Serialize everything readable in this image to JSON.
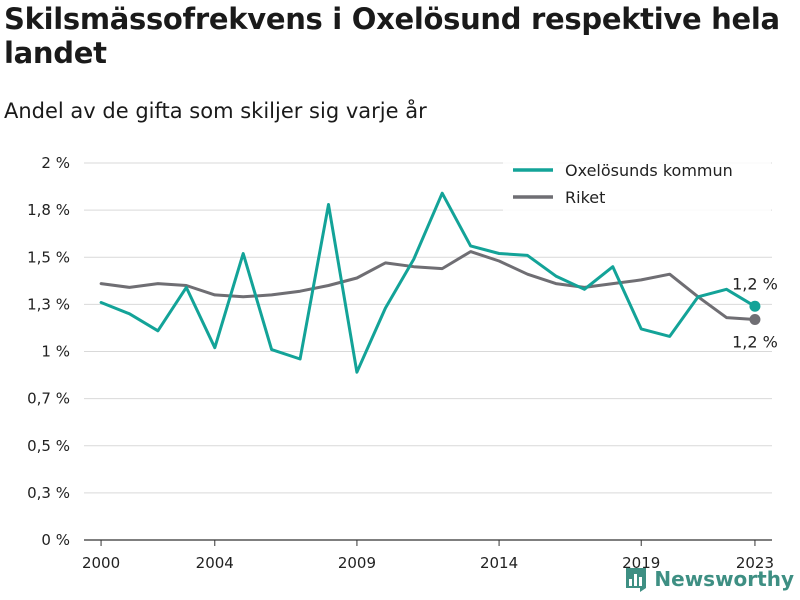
{
  "chart_data": {
    "type": "line",
    "title": "Skilsmässofrekvens i Oxelösund respektive hela landet",
    "subtitle": "Andel av de gifta som skiljer sig varje år",
    "x": [
      2000,
      2001,
      2002,
      2003,
      2004,
      2005,
      2006,
      2007,
      2008,
      2009,
      2010,
      2011,
      2012,
      2013,
      2014,
      2015,
      2016,
      2017,
      2018,
      2019,
      2020,
      2021,
      2022,
      2023
    ],
    "x_ticks": [
      "2000",
      "2004",
      "2009",
      "2014",
      "2019",
      "2023"
    ],
    "x_tick_values": [
      2000,
      2004,
      2009,
      2014,
      2019,
      2023
    ],
    "y_ticks": [
      "0 %",
      "0,3 %",
      "0,5 %",
      "0,7 %",
      "1 %",
      "1,3 %",
      "1,5 %",
      "1,8 %",
      "2 %"
    ],
    "y_tick_values": [
      0,
      0.25,
      0.5,
      0.75,
      1.0,
      1.25,
      1.5,
      1.75,
      2.0
    ],
    "ylim": [
      0,
      2.0
    ],
    "xlim": [
      1999.4,
      2023.6
    ],
    "grid": true,
    "legend_position": "top-right",
    "series": [
      {
        "name": "Oxelösunds kommun",
        "color": "#13a398",
        "values": [
          1.26,
          1.2,
          1.11,
          1.34,
          1.02,
          1.52,
          1.01,
          0.96,
          1.78,
          0.89,
          1.23,
          1.49,
          1.84,
          1.56,
          1.52,
          1.51,
          1.4,
          1.33,
          1.45,
          1.12,
          1.08,
          1.29,
          1.33,
          1.24
        ],
        "end_label": "1,2 %"
      },
      {
        "name": "Riket",
        "color": "#6f6e73",
        "values": [
          1.36,
          1.34,
          1.36,
          1.35,
          1.3,
          1.29,
          1.3,
          1.32,
          1.35,
          1.39,
          1.47,
          1.45,
          1.44,
          1.53,
          1.48,
          1.41,
          1.36,
          1.34,
          1.36,
          1.38,
          1.41,
          1.29,
          1.18,
          1.17
        ],
        "end_label": "1,2 %"
      }
    ]
  },
  "brand": {
    "name": "Newsworthy",
    "icon": "bar-chart-logo-icon",
    "color": "#3e8f83"
  }
}
